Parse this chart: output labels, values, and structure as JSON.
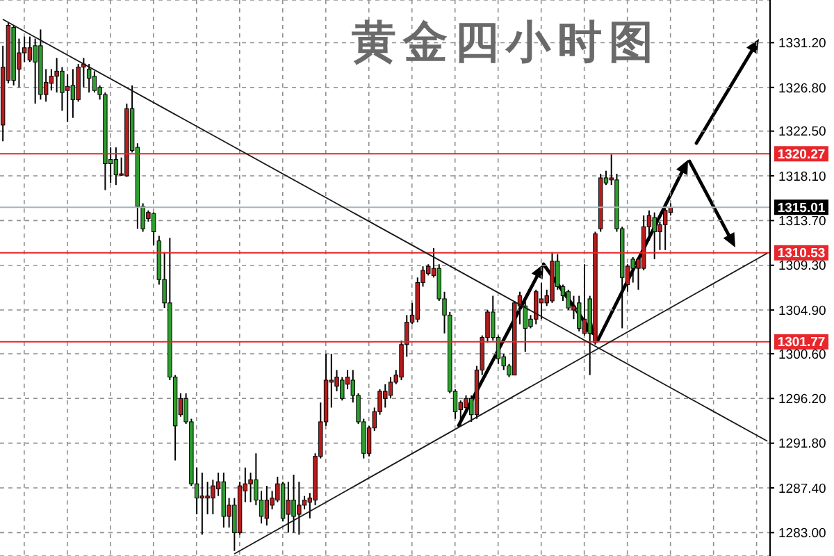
{
  "chart_data": {
    "type": "candlestick",
    "title": "黄金四小时图",
    "categories": [
      null,
      null,
      null,
      null,
      null,
      null,
      null,
      null,
      null,
      null,
      null,
      null,
      null,
      null,
      null,
      null,
      null,
      null,
      null,
      null,
      null,
      null,
      null,
      null,
      null,
      null,
      null,
      null,
      null,
      null,
      null,
      null,
      null,
      null,
      null,
      null,
      null,
      null,
      null,
      null,
      null,
      null,
      null,
      null,
      null,
      null,
      null,
      null,
      null,
      null,
      null,
      null,
      null,
      null,
      null,
      null,
      null,
      null,
      null,
      null,
      null,
      null,
      null,
      null,
      null,
      null,
      null,
      null,
      null,
      null,
      null,
      null,
      null,
      null,
      null,
      null,
      null,
      null,
      null,
      null,
      null,
      null,
      null,
      null,
      null,
      null,
      null,
      null,
      null,
      null,
      null,
      null,
      null,
      null,
      null,
      null,
      null,
      null,
      null,
      null,
      null,
      null,
      null,
      null,
      null,
      null,
      null,
      null,
      null,
      null,
      null,
      null,
      null,
      null,
      null,
      null,
      null,
      null,
      null,
      null,
      null,
      null,
      null,
      null,
      null,
      null,
      null,
      null,
      null,
      null,
      null,
      null,
      null,
      null,
      null,
      null,
      null,
      null,
      null,
      null,
      null,
      null,
      null
    ],
    "ohlc": [
      [
        1323.1,
        1330.9,
        1321.5,
        1328.8
      ],
      [
        1327.5,
        1333.2,
        1327.2,
        1332.9
      ],
      [
        1332.7,
        1332.9,
        1327.0,
        1327.5
      ],
      [
        1328.6,
        1331.6,
        1326.8,
        1330.2
      ],
      [
        1330.2,
        1331.8,
        1329.3,
        1330.7
      ],
      [
        1329.5,
        1331.8,
        1329.3,
        1330.7
      ],
      [
        1330.9,
        1331.6,
        1325.2,
        1329.3
      ],
      [
        1330.9,
        1332.5,
        1325.6,
        1326.1
      ],
      [
        1326.1,
        1328.6,
        1325.4,
        1327.3
      ],
      [
        1327.2,
        1328.6,
        1326.5,
        1327.9
      ],
      [
        1327.9,
        1329.7,
        1326.3,
        1328.4
      ],
      [
        1328.4,
        1328.8,
        1324.5,
        1326.3
      ],
      [
        1326.5,
        1328.1,
        1323.4,
        1326.9
      ],
      [
        1327.0,
        1328.6,
        1323.8,
        1325.6
      ],
      [
        1325.6,
        1329.1,
        1325.4,
        1328.8
      ],
      [
        1328.8,
        1329.7,
        1326.8,
        1329.1
      ],
      [
        1328.6,
        1329.1,
        1326.3,
        1327.7
      ],
      [
        1327.9,
        1328.4,
        1326.3,
        1326.5
      ],
      [
        1326.8,
        1327.0,
        1325.6,
        1326.1
      ],
      [
        1326.1,
        1326.3,
        1316.7,
        1319.3
      ],
      [
        1319.7,
        1320.9,
        1317.4,
        1319.3
      ],
      [
        1319.7,
        1320.9,
        1317.2,
        1318.2
      ],
      [
        1318.2,
        1319.9,
        1318.1,
        1318.3
      ],
      [
        1318.1,
        1325.2,
        1318.0,
        1324.7
      ],
      [
        1324.7,
        1327.0,
        1320.4,
        1320.6
      ],
      [
        1320.9,
        1321.3,
        1312.9,
        1315.1
      ],
      [
        1315.1,
        1315.4,
        1312.6,
        1312.9
      ],
      [
        1313.9,
        1314.7,
        1313.6,
        1314.5
      ],
      [
        1314.4,
        1314.5,
        1311.3,
        1312.6
      ],
      [
        1311.7,
        1312.2,
        1307.4,
        1307.9
      ],
      [
        1307.9,
        1310.6,
        1305.1,
        1305.6
      ],
      [
        1305.6,
        1312.0,
        1298.0,
        1298.3
      ],
      [
        1298.3,
        1298.5,
        1290.1,
        1293.5
      ],
      [
        1294.6,
        1296.7,
        1294.4,
        1296.2
      ],
      [
        1296.2,
        1296.7,
        1293.7,
        1293.9
      ],
      [
        1293.9,
        1294.2,
        1287.6,
        1287.8
      ],
      [
        1287.8,
        1289.4,
        1284.8,
        1286.4
      ],
      [
        1286.4,
        1288.9,
        1282.8,
        1286.6
      ],
      [
        1286.4,
        1288.0,
        1284.8,
        1286.6
      ],
      [
        1286.4,
        1288.2,
        1284.8,
        1287.6
      ],
      [
        1287.3,
        1288.9,
        1286.6,
        1288.0
      ],
      [
        1288.0,
        1288.9,
        1283.5,
        1284.6
      ],
      [
        1284.6,
        1286.4,
        1283.5,
        1285.7
      ],
      [
        1285.7,
        1286.4,
        1281.2,
        1283.0
      ],
      [
        1283.0,
        1288.0,
        1282.8,
        1287.6
      ],
      [
        1287.1,
        1289.4,
        1286.0,
        1287.8
      ],
      [
        1287.8,
        1288.9,
        1286.0,
        1288.2
      ],
      [
        1288.2,
        1290.8,
        1285.7,
        1286.2
      ],
      [
        1286.2,
        1287.1,
        1283.9,
        1284.6
      ],
      [
        1284.4,
        1287.6,
        1283.7,
        1286.2
      ],
      [
        1285.7,
        1287.1,
        1285.3,
        1286.4
      ],
      [
        1286.2,
        1288.5,
        1286.0,
        1287.8
      ],
      [
        1287.8,
        1288.0,
        1284.1,
        1284.4
      ],
      [
        1284.8,
        1288.0,
        1283.0,
        1286.2
      ],
      [
        1286.2,
        1288.7,
        1283.0,
        1284.6
      ],
      [
        1284.8,
        1288.0,
        1282.8,
        1285.7
      ],
      [
        1285.7,
        1286.6,
        1285.3,
        1286.2
      ],
      [
        1286.0,
        1286.9,
        1284.4,
        1286.4
      ],
      [
        1286.2,
        1290.8,
        1285.7,
        1290.5
      ],
      [
        1290.5,
        1295.8,
        1290.3,
        1293.9
      ],
      [
        1293.9,
        1300.6,
        1293.5,
        1298.0
      ],
      [
        1297.8,
        1300.6,
        1295.3,
        1298.0
      ],
      [
        1297.4,
        1299.0,
        1296.9,
        1298.3
      ],
      [
        1298.0,
        1298.3,
        1296.0,
        1296.2
      ],
      [
        1297.6,
        1299.0,
        1297.1,
        1298.3
      ],
      [
        1298.0,
        1299.0,
        1295.8,
        1296.5
      ],
      [
        1296.5,
        1296.7,
        1293.7,
        1293.9
      ],
      [
        1293.9,
        1294.2,
        1290.3,
        1290.8
      ],
      [
        1290.8,
        1293.5,
        1290.5,
        1293.3
      ],
      [
        1293.3,
        1295.3,
        1293.0,
        1294.9
      ],
      [
        1294.9,
        1297.1,
        1294.6,
        1296.9
      ],
      [
        1296.2,
        1297.6,
        1295.3,
        1296.9
      ],
      [
        1296.5,
        1298.3,
        1296.2,
        1297.8
      ],
      [
        1297.8,
        1299.0,
        1297.6,
        1298.5
      ],
      [
        1298.3,
        1301.9,
        1298.0,
        1301.5
      ],
      [
        1301.5,
        1304.4,
        1300.3,
        1303.7
      ],
      [
        1303.7,
        1305.6,
        1303.5,
        1304.4
      ],
      [
        1304.0,
        1308.1,
        1303.7,
        1307.6
      ],
      [
        1307.6,
        1309.2,
        1307.2,
        1308.8
      ],
      [
        1308.5,
        1309.4,
        1308.3,
        1309.2
      ],
      [
        1308.3,
        1311.0,
        1308.1,
        1309.0
      ],
      [
        1309.0,
        1309.4,
        1305.8,
        1306.0
      ],
      [
        1306.0,
        1306.7,
        1302.6,
        1304.4
      ],
      [
        1304.4,
        1304.7,
        1296.7,
        1296.9
      ],
      [
        1296.9,
        1297.1,
        1294.2,
        1294.9
      ],
      [
        1295.1,
        1296.0,
        1293.5,
        1295.8
      ],
      [
        1295.3,
        1296.5,
        1294.9,
        1296.2
      ],
      [
        1296.2,
        1296.5,
        1293.9,
        1294.6
      ],
      [
        1294.6,
        1299.4,
        1294.2,
        1299.0
      ],
      [
        1299.0,
        1302.4,
        1298.5,
        1302.2
      ],
      [
        1302.2,
        1304.9,
        1301.7,
        1304.7
      ],
      [
        1304.7,
        1306.3,
        1301.9,
        1302.2
      ],
      [
        1302.2,
        1302.4,
        1299.6,
        1300.1
      ],
      [
        1300.3,
        1300.6,
        1299.0,
        1299.4
      ],
      [
        1299.4,
        1299.6,
        1298.3,
        1298.5
      ],
      [
        1298.5,
        1305.8,
        1298.5,
        1305.6
      ],
      [
        1305.3,
        1306.7,
        1303.5,
        1306.3
      ],
      [
        1305.3,
        1305.8,
        1300.8,
        1303.1
      ],
      [
        1304.0,
        1304.4,
        1303.1,
        1303.3
      ],
      [
        1304.0,
        1306.9,
        1303.5,
        1306.7
      ],
      [
        1305.6,
        1307.6,
        1304.0,
        1306.0
      ],
      [
        1305.6,
        1306.9,
        1305.3,
        1306.3
      ],
      [
        1305.8,
        1310.6,
        1305.6,
        1309.7
      ],
      [
        1309.7,
        1310.4,
        1306.9,
        1307.2
      ],
      [
        1307.2,
        1307.4,
        1305.8,
        1306.3
      ],
      [
        1306.7,
        1306.9,
        1304.9,
        1305.1
      ],
      [
        1304.9,
        1306.3,
        1304.0,
        1305.3
      ],
      [
        1305.6,
        1306.3,
        1302.8,
        1303.1
      ],
      [
        1302.6,
        1309.4,
        1302.4,
        1304.0
      ],
      [
        1306.0,
        1306.3,
        1298.5,
        1302.6
      ],
      [
        1301.7,
        1312.6,
        1301.5,
        1312.4
      ],
      [
        1312.9,
        1318.3,
        1312.6,
        1317.9
      ],
      [
        1317.9,
        1318.6,
        1317.2,
        1317.4
      ],
      [
        1317.7,
        1320.2,
        1317.2,
        1317.9
      ],
      [
        1317.7,
        1318.3,
        1312.6,
        1312.9
      ],
      [
        1312.9,
        1313.1,
        1303.1,
        1308.1
      ],
      [
        1307.4,
        1309.4,
        1306.7,
        1309.2
      ],
      [
        1309.9,
        1310.1,
        1307.6,
        1309.0
      ],
      [
        1309.0,
        1310.1,
        1306.9,
        1309.9
      ],
      [
        1309.0,
        1314.2,
        1308.8,
        1313.1
      ],
      [
        1313.1,
        1314.7,
        1311.7,
        1314.2
      ],
      [
        1314.0,
        1314.5,
        1309.9,
        1312.6
      ],
      [
        1312.6,
        1313.6,
        1310.8,
        1313.3
      ],
      [
        1313.3,
        1314.9,
        1310.8,
        1314.7
      ],
      [
        1314.5,
        1315.4,
        1314.2,
        1315.0
      ],
      null,
      null,
      null,
      null,
      null,
      null,
      null,
      null,
      null,
      null,
      null,
      null,
      null,
      null,
      null,
      null,
      null,
      null
    ],
    "colors": [
      "#b71c1c",
      "#b71c1c",
      "#2e9e2e",
      "#b71c1c",
      "#b71c1c",
      "#b71c1c",
      "#2e9e2e",
      "#2e9e2e",
      "#b71c1c",
      "#b71c1c",
      "#b71c1c",
      "#2e9e2e",
      "#b71c1c",
      "#2e9e2e",
      "#b71c1c",
      "#b71c1c",
      "#2e9e2e",
      "#2e9e2e",
      "#2e9e2e",
      "#2e9e2e",
      "#2e9e2e",
      "#2e9e2e",
      "#b71c1c",
      "#b71c1c",
      "#2e9e2e",
      "#2e9e2e",
      "#2e9e2e",
      "#b71c1c",
      "#2e9e2e",
      "#2e9e2e",
      "#2e9e2e",
      "#2e9e2e",
      "#2e9e2e",
      "#b71c1c",
      "#2e9e2e",
      "#2e9e2e",
      "#2e9e2e",
      "#b71c1c",
      "#b71c1c",
      "#b71c1c",
      "#b71c1c",
      "#2e9e2e",
      "#b71c1c",
      "#2e9e2e",
      "#b71c1c",
      "#b71c1c",
      "#b71c1c",
      "#2e9e2e",
      "#2e9e2e",
      "#b71c1c",
      "#b71c1c",
      "#b71c1c",
      "#2e9e2e",
      "#b71c1c",
      "#2e9e2e",
      "#b71c1c",
      "#b71c1c",
      "#b71c1c",
      "#b71c1c",
      "#b71c1c",
      "#b71c1c",
      "#b71c1c",
      "#b71c1c",
      "#2e9e2e",
      "#b71c1c",
      "#2e9e2e",
      "#2e9e2e",
      "#2e9e2e",
      "#b71c1c",
      "#b71c1c",
      "#b71c1c",
      "#b71c1c",
      "#b71c1c",
      "#b71c1c",
      "#b71c1c",
      "#b71c1c",
      "#b71c1c",
      "#b71c1c",
      "#b71c1c",
      "#b71c1c",
      "#b71c1c",
      "#2e9e2e",
      "#2e9e2e",
      "#2e9e2e",
      "#2e9e2e",
      "#b71c1c",
      "#b71c1c",
      "#2e9e2e",
      "#b71c1c",
      "#b71c1c",
      "#b71c1c",
      "#2e9e2e",
      "#2e9e2e",
      "#2e9e2e",
      "#2e9e2e",
      "#b71c1c",
      "#b71c1c",
      "#2e9e2e",
      "#2e9e2e",
      "#b71c1c",
      "#b71c1c",
      "#b71c1c",
      "#b71c1c",
      "#2e9e2e",
      "#2e9e2e",
      "#2e9e2e",
      "#b71c1c",
      "#2e9e2e",
      "#b71c1c",
      "#2e9e2e",
      "#b71c1c",
      "#b71c1c",
      "#2e9e2e",
      "#b71c1c",
      "#2e9e2e",
      "#2e9e2e",
      "#b71c1c",
      "#2e9e2e",
      "#b71c1c",
      "#b71c1c",
      "#b71c1c",
      "#2e9e2e",
      "#b71c1c",
      "#b71c1c",
      "#b71c1c",
      null,
      null,
      null,
      null,
      null,
      null,
      null,
      null,
      null,
      null,
      null,
      null,
      null,
      null,
      null,
      null,
      null,
      null
    ],
    "series": [
      {
        "type": "line",
        "color": "#1a1a1a",
        "values": [
          1333.5,
          null,
          null,
          null,
          null,
          null,
          null,
          null,
          null,
          null,
          null,
          null,
          null,
          null,
          null,
          null,
          null,
          null,
          null,
          null,
          null,
          null,
          null,
          null,
          null,
          null,
          null,
          null,
          null,
          null,
          null,
          null,
          null,
          null,
          null,
          null,
          null,
          null,
          null,
          null,
          null,
          null,
          null,
          null,
          null,
          null,
          null,
          null,
          null,
          null,
          null,
          null,
          null,
          null,
          null,
          null,
          null,
          null,
          null,
          null,
          null,
          null,
          null,
          null,
          null,
          null,
          null,
          null,
          null,
          null,
          null,
          null,
          null,
          null,
          null,
          null,
          null,
          null,
          null,
          null,
          null,
          null,
          null,
          null,
          null,
          null,
          null,
          null,
          null,
          null,
          null,
          null,
          null,
          null,
          null,
          null,
          null,
          null,
          null,
          null,
          null,
          null,
          null,
          null,
          null,
          null,
          null,
          null,
          null,
          null,
          null,
          null,
          null,
          null,
          null,
          null,
          null,
          null,
          null,
          null,
          null,
          null,
          null,
          null,
          null,
          null,
          null,
          null,
          null,
          null,
          null,
          null,
          null,
          null,
          null,
          null,
          null,
          null,
          null,
          null,
          null,
          null,
          1292.0
        ]
      },
      {
        "type": "line",
        "color": "#1a1a1a",
        "values": [
          null,
          null,
          null,
          null,
          null,
          null,
          null,
          null,
          null,
          null,
          null,
          null,
          null,
          null,
          null,
          null,
          null,
          null,
          null,
          null,
          null,
          null,
          null,
          null,
          null,
          null,
          null,
          null,
          null,
          null,
          null,
          null,
          null,
          null,
          null,
          null,
          null,
          null,
          null,
          null,
          null,
          null,
          null,
          1280.9,
          null,
          null,
          null,
          null,
          null,
          null,
          null,
          null,
          null,
          null,
          null,
          null,
          null,
          null,
          null,
          null,
          null,
          null,
          null,
          null,
          null,
          null,
          null,
          null,
          null,
          null,
          null,
          null,
          null,
          null,
          null,
          null,
          null,
          null,
          null,
          null,
          null,
          null,
          null,
          null,
          null,
          null,
          null,
          null,
          null,
          null,
          null,
          null,
          null,
          null,
          null,
          null,
          null,
          null,
          null,
          null,
          null,
          null,
          null,
          null,
          null,
          null,
          null,
          null,
          null,
          null,
          null,
          null,
          null,
          null,
          null,
          null,
          null,
          null,
          null,
          null,
          null,
          null,
          null,
          null,
          null,
          null,
          null,
          null,
          null,
          null,
          null,
          null,
          null,
          null,
          null,
          null,
          null,
          null,
          null,
          null,
          null,
          null,
          1310.5
        ]
      }
    ],
    "ylim": [
      1280.7,
      1335.4
    ],
    "yticks": [
      {
        "value": 1283,
        "label": "1283.00"
      },
      {
        "value": 1287.4,
        "label": "1287.40"
      },
      {
        "value": 1291.8,
        "label": "1291.80"
      },
      {
        "value": 1296.2,
        "label": "1296.20"
      },
      {
        "value": 1300.6,
        "label": "1300.60"
      },
      {
        "value": 1304.9,
        "label": "1304.90"
      },
      {
        "value": 1309.3,
        "label": "1309.30"
      },
      {
        "value": 1313.7,
        "label": "1313.70"
      },
      {
        "value": 1318.1,
        "label": "1318.10"
      },
      {
        "value": 1322.5,
        "label": "1322.50"
      },
      {
        "value": 1326.8,
        "label": "1326.80"
      },
      {
        "value": 1331.2,
        "label": "1331.20"
      }
    ],
    "ref_lines": [
      {
        "axis": "y",
        "value": 1320.27,
        "label": "1320.27",
        "color": "#e8262b"
      },
      {
        "axis": "y",
        "value": 1315.01,
        "label": "1315.01",
        "color": "#aab4bc"
      },
      {
        "axis": "y",
        "value": 1310.53,
        "label": "1310.53",
        "color": "#e8262b"
      },
      {
        "axis": "y",
        "value": 1301.77,
        "label": "1301.77",
        "color": "#e8262b"
      }
    ],
    "grid": true,
    "tick_labels": "y"
  }
}
